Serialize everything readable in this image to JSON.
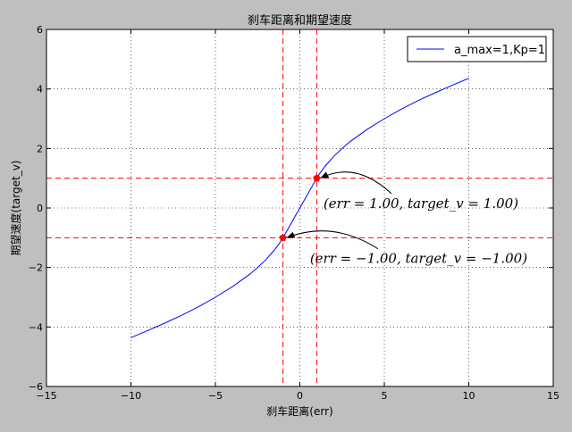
{
  "chart_data": {
    "type": "line",
    "title": "刹车距离和期望速度",
    "xlabel": "刹车距离(err)",
    "ylabel": "期望速度(target_v)",
    "xlim": [
      -15,
      15
    ],
    "ylim": [
      -6,
      6
    ],
    "xticks": [
      -15,
      -10,
      -5,
      0,
      5,
      10,
      15
    ],
    "yticks": [
      -6,
      -4,
      -2,
      0,
      2,
      4,
      6
    ],
    "xtick_labels": [
      "−15",
      "−10",
      "−5",
      "0",
      "5",
      "10",
      "15"
    ],
    "ytick_labels": [
      "−6",
      "−4",
      "−2",
      "0",
      "2",
      "4",
      "6"
    ],
    "grid": true,
    "grid_style": "dotted",
    "legend_position": "top-right",
    "series": [
      {
        "name": "a_max=1,Kp=1",
        "color": "#0000ff",
        "x": [
          -10,
          -9,
          -8,
          -7,
          -6,
          -5,
          -4,
          -3,
          -2.5,
          -2,
          -1.5,
          -1.2,
          -1,
          -0.8,
          -0.5,
          -0.3,
          0,
          0.3,
          0.5,
          0.8,
          1,
          1.2,
          1.5,
          2,
          2.5,
          3,
          4,
          5,
          6,
          7,
          8,
          9,
          10
        ],
        "y": [
          -4.36,
          -4.12,
          -3.87,
          -3.61,
          -3.32,
          -3.0,
          -2.65,
          -2.24,
          -2.0,
          -1.73,
          -1.41,
          -1.18,
          -1.0,
          -0.8,
          -0.5,
          -0.3,
          0,
          0.3,
          0.5,
          0.8,
          1.0,
          1.18,
          1.41,
          1.73,
          2.0,
          2.24,
          2.65,
          3.0,
          3.32,
          3.61,
          3.87,
          4.12,
          4.36
        ]
      }
    ],
    "reference_lines": {
      "vertical": [
        -1,
        1
      ],
      "horizontal": [
        -1,
        1
      ],
      "color": "#ff0000",
      "style": "dashed"
    },
    "highlighted_points": [
      {
        "x": 1,
        "y": 1
      },
      {
        "x": -1,
        "y": -1
      }
    ],
    "annotations": [
      {
        "text": "(err = 1.00, target_v = 1.00)",
        "point_x": 1,
        "point_y": 1,
        "text_x": 1.4,
        "text_y": 0
      },
      {
        "text": "(err = −1.00, target_v = −1.00)",
        "point_x": -1,
        "point_y": -1,
        "text_x": 0.6,
        "text_y": -1.85
      }
    ]
  }
}
